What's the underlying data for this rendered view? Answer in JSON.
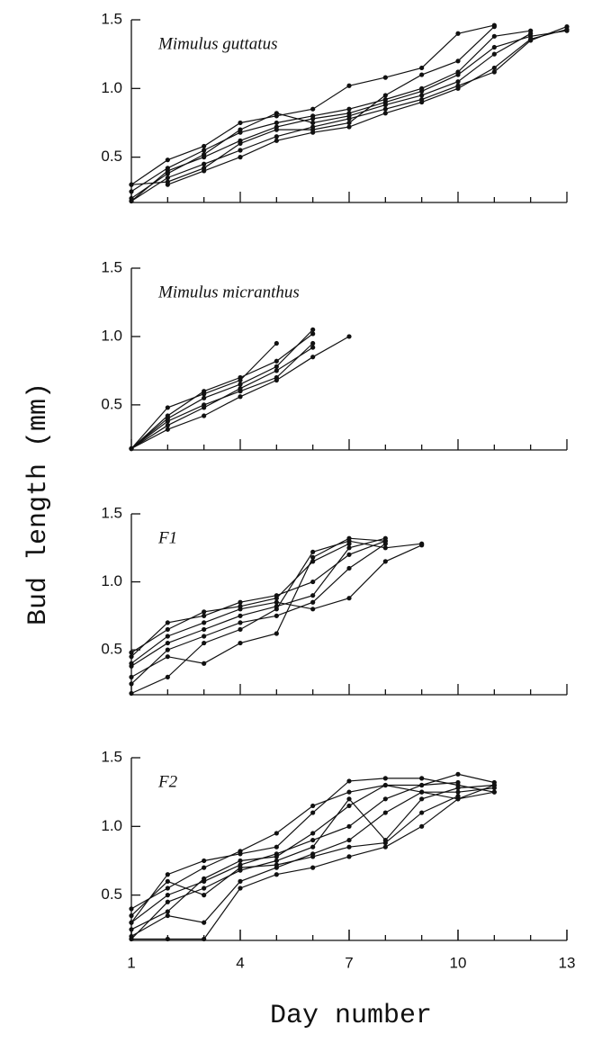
{
  "chart_data": [
    {
      "type": "line",
      "title": "Mimulus guttatus",
      "x": [
        1,
        2,
        3,
        4,
        5,
        6,
        7,
        8,
        9,
        10,
        11,
        12,
        13
      ],
      "series": [
        {
          "color": "#111111",
          "values": [
            0.18,
            0.4,
            0.5,
            0.62,
            0.72,
            0.78,
            0.82,
            0.9,
            0.98,
            1.1,
            1.3,
            1.38,
            1.42
          ]
        },
        {
          "color": "#111111",
          "values": [
            0.3,
            0.48,
            0.58,
            0.75,
            0.8,
            0.85,
            1.02,
            1.08,
            1.15,
            1.4,
            1.46,
            null,
            null
          ]
        },
        {
          "color": "#111111",
          "values": [
            0.18,
            0.35,
            0.45,
            0.55,
            0.65,
            0.72,
            0.78,
            0.85,
            0.92,
            1.02,
            1.12,
            1.35,
            1.45
          ]
        },
        {
          "color": "#111111",
          "values": [
            0.25,
            0.42,
            0.55,
            0.68,
            0.75,
            0.8,
            0.85,
            0.92,
            1.0,
            1.12,
            1.38,
            1.42,
            null
          ]
        },
        {
          "color": "#111111",
          "values": [
            0.2,
            0.38,
            0.52,
            0.7,
            0.82,
            0.75,
            0.8,
            0.88,
            0.95,
            1.05,
            1.25,
            1.4,
            null
          ]
        },
        {
          "color": "#111111",
          "values": [
            0.3,
            0.32,
            0.42,
            0.6,
            0.7,
            0.7,
            0.75,
            0.95,
            1.1,
            1.2,
            1.45,
            null,
            null
          ]
        },
        {
          "color": "#111111",
          "values": [
            null,
            0.3,
            0.4,
            0.5,
            0.62,
            0.68,
            0.72,
            0.82,
            0.9,
            1.0,
            1.15,
            1.36,
            1.43
          ]
        }
      ],
      "xlim": [
        1,
        13
      ],
      "ylim": [
        0.17,
        1.5
      ],
      "yticks": [
        {
          "value": 0.5,
          "label": "0.5"
        },
        {
          "value": 1,
          "label": "1.0"
        },
        {
          "value": 1.5,
          "label": "1.5"
        }
      ]
    },
    {
      "type": "line",
      "title": "Mimulus micranthus",
      "x": [
        1,
        2,
        3,
        4,
        5,
        6,
        7
      ],
      "series": [
        {
          "color": "#111111",
          "values": [
            0.18,
            0.48,
            0.58,
            0.68,
            0.95,
            null,
            null
          ]
        },
        {
          "color": "#111111",
          "values": [
            0.18,
            0.4,
            0.55,
            0.65,
            0.78,
            1.05,
            null
          ]
        },
        {
          "color": "#111111",
          "values": [
            0.18,
            0.38,
            0.5,
            0.6,
            0.7,
            0.95,
            null
          ]
        },
        {
          "color": "#111111",
          "values": [
            0.18,
            0.32,
            0.42,
            0.56,
            0.68,
            0.85,
            1.0
          ]
        },
        {
          "color": "#111111",
          "values": [
            0.18,
            0.42,
            0.6,
            0.7,
            0.82,
            1.02,
            null
          ]
        },
        {
          "color": "#111111",
          "values": [
            0.18,
            0.35,
            0.48,
            0.62,
            0.75,
            0.92,
            null
          ]
        }
      ],
      "xlim": [
        1,
        13
      ],
      "ylim": [
        0.17,
        1.5
      ],
      "yticks": [
        {
          "value": 0.5,
          "label": "0.5"
        },
        {
          "value": 1,
          "label": "1.0"
        },
        {
          "value": 1.5,
          "label": "1.5"
        }
      ]
    },
    {
      "type": "line",
      "title": "F1",
      "x": [
        1,
        2,
        3,
        4,
        5,
        6,
        7,
        8,
        9
      ],
      "series": [
        {
          "color": "#111111",
          "values": [
            0.18,
            0.3,
            0.55,
            0.65,
            0.8,
            1.22,
            1.3,
            1.25,
            1.28
          ]
        },
        {
          "color": "#111111",
          "values": [
            0.3,
            0.45,
            0.4,
            0.55,
            0.62,
            1.18,
            1.32,
            1.3,
            null
          ]
        },
        {
          "color": "#111111",
          "values": [
            0.45,
            0.7,
            0.75,
            0.85,
            0.9,
            1.0,
            1.2,
            1.3,
            null
          ]
        },
        {
          "color": "#111111",
          "values": [
            0.4,
            0.6,
            0.7,
            0.8,
            0.85,
            0.8,
            0.88,
            1.15,
            1.27
          ]
        },
        {
          "color": "#111111",
          "values": [
            0.38,
            0.55,
            0.65,
            0.75,
            0.82,
            0.9,
            1.25,
            1.32,
            null
          ]
        },
        {
          "color": "#111111",
          "values": [
            0.25,
            0.5,
            0.6,
            0.7,
            0.75,
            0.85,
            1.1,
            1.28,
            null
          ]
        },
        {
          "color": "#111111",
          "values": [
            0.48,
            0.65,
            0.78,
            0.82,
            0.88,
            1.15,
            1.28,
            null,
            null
          ]
        }
      ],
      "xlim": [
        1,
        13
      ],
      "ylim": [
        0.17,
        1.5
      ],
      "yticks": [
        {
          "value": 0.5,
          "label": "0.5"
        },
        {
          "value": 1,
          "label": "1.0"
        },
        {
          "value": 1.5,
          "label": "1.5"
        }
      ]
    },
    {
      "type": "line",
      "title": "F2",
      "x": [
        1,
        2,
        3,
        4,
        5,
        6,
        7,
        8,
        9,
        10,
        11
      ],
      "series": [
        {
          "color": "#111111",
          "values": [
            0.18,
            0.18,
            0.18,
            0.55,
            0.65,
            0.7,
            0.78,
            0.85,
            1.0,
            1.2,
            1.3
          ]
        },
        {
          "color": "#111111",
          "values": [
            0.3,
            0.65,
            0.75,
            0.8,
            0.85,
            1.1,
            1.33,
            1.35,
            1.35,
            1.3,
            1.25
          ]
        },
        {
          "color": "#111111",
          "values": [
            0.4,
            0.55,
            0.7,
            0.82,
            0.95,
            1.15,
            1.25,
            1.3,
            1.3,
            1.38,
            1.32
          ]
        },
        {
          "color": "#111111",
          "values": [
            0.2,
            0.35,
            0.3,
            0.6,
            0.7,
            0.8,
            0.9,
            1.1,
            1.25,
            1.25,
            1.28
          ]
        },
        {
          "color": "#111111",
          "values": [
            0.3,
            0.5,
            0.6,
            0.72,
            0.8,
            0.9,
            1.0,
            1.2,
            1.3,
            1.32,
            null
          ]
        },
        {
          "color": "#111111",
          "values": [
            0.18,
            0.45,
            0.55,
            0.68,
            0.75,
            0.85,
            1.2,
            0.9,
            1.2,
            1.28,
            1.3
          ]
        },
        {
          "color": "#111111",
          "values": [
            0.25,
            0.38,
            0.62,
            0.75,
            0.78,
            0.95,
            1.15,
            1.3,
            1.25,
            1.2,
            1.25
          ]
        },
        {
          "color": "#111111",
          "values": [
            0.35,
            0.6,
            0.5,
            0.7,
            0.72,
            0.78,
            0.85,
            0.88,
            1.1,
            1.22,
            null
          ]
        }
      ],
      "xlim": [
        1,
        13
      ],
      "ylim": [
        0.17,
        1.5
      ],
      "yticks": [
        {
          "value": 0.5,
          "label": "0.5"
        },
        {
          "value": 1,
          "label": "1.0"
        },
        {
          "value": 1.5,
          "label": "1.5"
        }
      ],
      "xticks": [
        1,
        4,
        7,
        10,
        13
      ],
      "xlabel": "Day number",
      "ylabel": "Bud length (mm)"
    }
  ]
}
